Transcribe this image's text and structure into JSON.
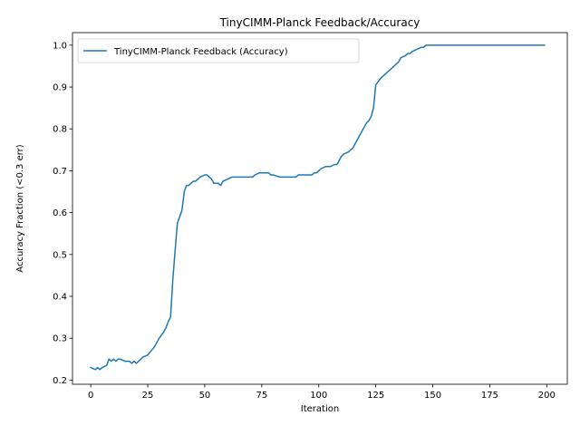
{
  "chart_data": {
    "type": "line",
    "title": "TinyCIMM-Planck Feedback/Accuracy",
    "xlabel": "Iteration",
    "ylabel": "Accuracy Fraction (<0.3 err)",
    "xlim": [
      -8,
      209
    ],
    "ylim": [
      0.19,
      1.03
    ],
    "xticks": [
      0,
      25,
      50,
      75,
      100,
      125,
      150,
      175,
      200
    ],
    "yticks": [
      0.2,
      0.3,
      0.4,
      0.5,
      0.6,
      0.7,
      0.8,
      0.9,
      1.0
    ],
    "xtick_labels": [
      "0",
      "25",
      "50",
      "75",
      "100",
      "125",
      "150",
      "175",
      "200"
    ],
    "ytick_labels": [
      "0.2",
      "0.3",
      "0.4",
      "0.5",
      "0.6",
      "0.7",
      "0.8",
      "0.9",
      "1.0"
    ],
    "grid": false,
    "legend_position": "top-left",
    "series": [
      {
        "name": "TinyCIMM-Planck Feedback (Accuracy)",
        "color": "#1f77b4",
        "x": [
          0,
          2,
          3,
          4,
          5,
          7,
          8,
          9,
          10,
          11,
          12,
          13,
          15,
          17,
          18,
          19,
          20,
          22,
          23,
          25,
          28,
          29,
          30,
          32,
          33,
          34,
          35,
          36,
          37,
          38,
          40,
          41,
          42,
          43,
          45,
          46,
          48,
          50,
          51,
          52,
          53,
          54,
          55,
          56,
          57,
          58,
          60,
          62,
          70,
          71,
          72,
          74,
          78,
          79,
          80,
          83,
          90,
          91,
          97,
          98,
          99,
          100,
          101,
          103,
          105,
          107,
          108,
          110,
          111,
          113,
          114,
          115,
          116,
          117,
          118,
          120,
          121,
          122,
          123,
          124,
          125,
          127,
          130,
          135,
          136,
          138,
          139,
          140,
          141,
          143,
          145,
          146,
          147,
          150,
          160,
          170,
          180,
          190,
          199
        ],
        "y": [
          0.23,
          0.225,
          0.23,
          0.225,
          0.23,
          0.235,
          0.25,
          0.245,
          0.25,
          0.245,
          0.25,
          0.25,
          0.245,
          0.245,
          0.24,
          0.245,
          0.24,
          0.25,
          0.255,
          0.26,
          0.28,
          0.29,
          0.3,
          0.315,
          0.325,
          0.34,
          0.35,
          0.44,
          0.51,
          0.575,
          0.605,
          0.65,
          0.665,
          0.665,
          0.675,
          0.675,
          0.685,
          0.69,
          0.69,
          0.685,
          0.68,
          0.67,
          0.67,
          0.67,
          0.665,
          0.675,
          0.68,
          0.685,
          0.685,
          0.685,
          0.69,
          0.695,
          0.695,
          0.69,
          0.69,
          0.685,
          0.685,
          0.69,
          0.69,
          0.695,
          0.695,
          0.7,
          0.705,
          0.71,
          0.71,
          0.715,
          0.715,
          0.735,
          0.74,
          0.745,
          0.75,
          0.755,
          0.765,
          0.775,
          0.785,
          0.805,
          0.815,
          0.82,
          0.83,
          0.85,
          0.905,
          0.92,
          0.935,
          0.96,
          0.97,
          0.975,
          0.98,
          0.98,
          0.985,
          0.99,
          0.995,
          0.995,
          1.0,
          1.0,
          1.0,
          1.0,
          1.0,
          1.0,
          1.0
        ]
      }
    ]
  }
}
